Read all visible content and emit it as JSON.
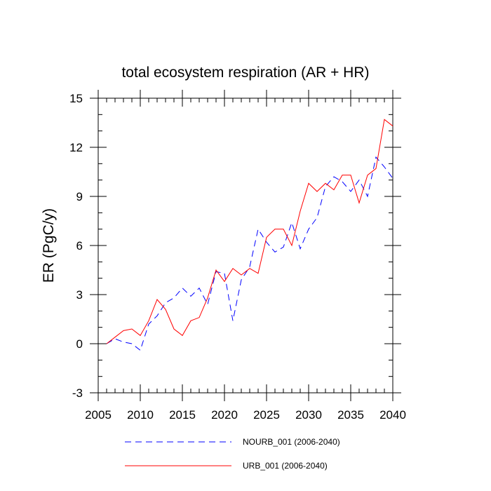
{
  "chart_data": {
    "type": "line",
    "title": "total ecosystem respiration (AR + HR)",
    "xlabel": "",
    "ylabel": "ER  (PgC/y)",
    "xlim": [
      2005,
      2040
    ],
    "ylim": [
      -3,
      15
    ],
    "x_ticks": [
      2005,
      2010,
      2015,
      2020,
      2025,
      2030,
      2035,
      2040
    ],
    "y_ticks": [
      -3,
      0,
      3,
      6,
      9,
      12,
      15
    ],
    "x_tick_labels": [
      "2005",
      "2010",
      "2015",
      "2020",
      "2025",
      "2030",
      "2035",
      "2040"
    ],
    "y_tick_labels": [
      "-3",
      "0",
      "3",
      "6",
      "9",
      "12",
      "15"
    ],
    "grid": false,
    "legend_position": "bottom",
    "x": [
      2006,
      2007,
      2008,
      2009,
      2010,
      2011,
      2012,
      2013,
      2014,
      2015,
      2016,
      2017,
      2018,
      2019,
      2020,
      2021,
      2022,
      2023,
      2024,
      2025,
      2026,
      2027,
      2028,
      2029,
      2030,
      2031,
      2032,
      2033,
      2034,
      2035,
      2036,
      2037,
      2038,
      2039,
      2040
    ],
    "series": [
      {
        "name": "NOURB_001 (2006-2040)",
        "color": "#0000ff",
        "style": "dashed",
        "values": [
          0.0,
          0.3,
          0.1,
          0.0,
          -0.4,
          1.2,
          1.7,
          2.5,
          2.8,
          3.4,
          2.9,
          3.4,
          2.4,
          4.4,
          4.3,
          1.4,
          3.9,
          4.7,
          7.0,
          6.2,
          5.6,
          5.9,
          7.4,
          5.8,
          7.0,
          7.7,
          9.6,
          10.2,
          9.9,
          9.3,
          10.0,
          9.0,
          11.4,
          10.8,
          10.1
        ]
      },
      {
        "name": "URB_001 (2006-2040)",
        "color": "#ff0000",
        "style": "solid",
        "values": [
          0.0,
          0.4,
          0.8,
          0.9,
          0.5,
          1.4,
          2.7,
          2.1,
          0.9,
          0.5,
          1.4,
          1.6,
          2.8,
          4.5,
          3.8,
          4.6,
          4.2,
          4.6,
          4.3,
          6.5,
          7.0,
          7.0,
          6.0,
          8.1,
          9.8,
          9.3,
          9.8,
          9.4,
          10.3,
          10.3,
          8.6,
          10.3,
          10.7,
          13.7,
          13.3
        ]
      }
    ]
  }
}
